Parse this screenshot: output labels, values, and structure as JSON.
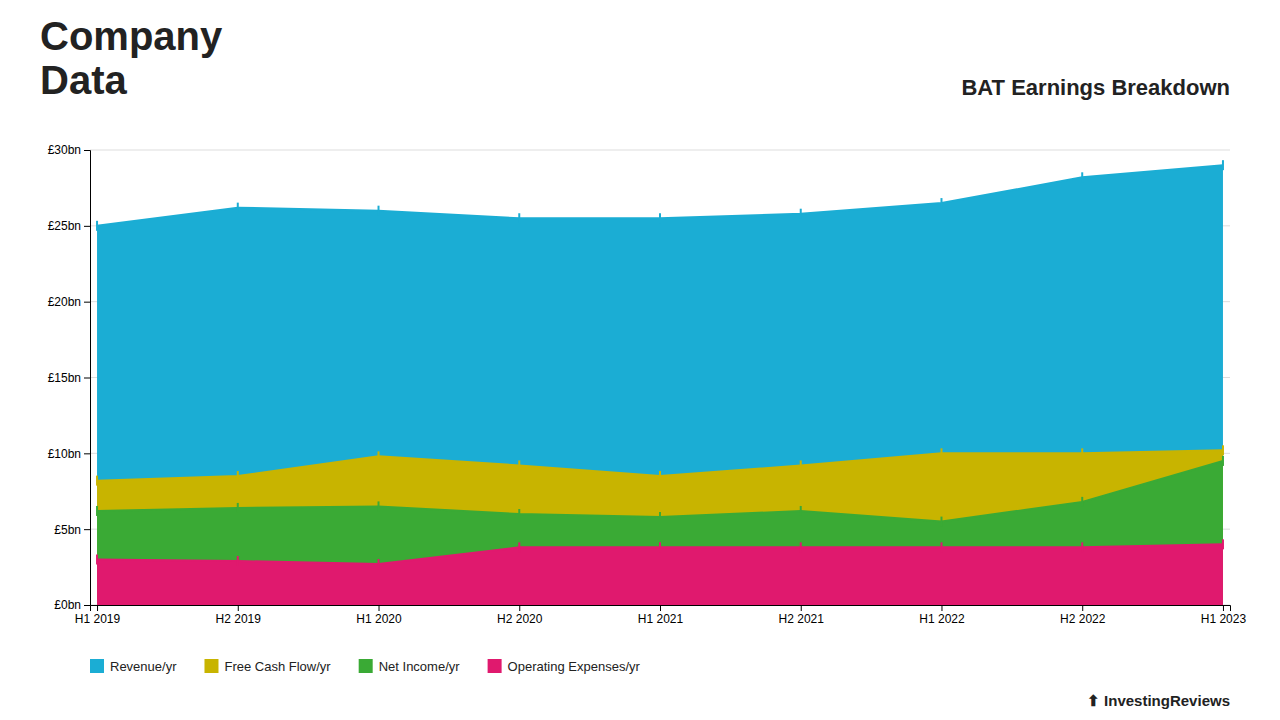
{
  "chart_data": {
    "type": "area",
    "title": "Company\nData",
    "subtitle": "BAT Earnings Breakdown",
    "annotations": [
      "⬆ InvestingReviews"
    ],
    "categories": [
      "H1 2019",
      "H2 2019",
      "H1 2020",
      "H2 2020",
      "H1 2021",
      "H2 2021",
      "H1 2022",
      "H2 2022",
      "H1 2023"
    ],
    "series": [
      {
        "name": "Revenue/yr",
        "color": "#1badd4",
        "values": [
          25.0,
          26.2,
          26.0,
          25.5,
          25.5,
          25.8,
          26.5,
          28.2,
          29.0
        ]
      },
      {
        "name": "Free Cash Flow/yr",
        "color": "#c8b400",
        "values": [
          8.2,
          8.5,
          9.8,
          9.2,
          8.5,
          9.2,
          10.0,
          10.0,
          10.2
        ]
      },
      {
        "name": "Net Income/yr",
        "color": "#3aaa35",
        "values": [
          6.2,
          6.4,
          6.5,
          6.0,
          5.8,
          6.2,
          5.5,
          6.8,
          9.5
        ]
      },
      {
        "name": "Operating Expenses/yr",
        "color": "#e0196e",
        "values": [
          3.0,
          2.9,
          2.7,
          3.8,
          3.8,
          3.8,
          3.8,
          3.8,
          4.0
        ]
      }
    ],
    "ylim": [
      0,
      30
    ],
    "yticks": [
      {
        "value": 0,
        "label": "£0bn"
      },
      {
        "value": 5,
        "label": "£5bn"
      },
      {
        "value": 10,
        "label": "£10bn"
      },
      {
        "value": 15,
        "label": "£15bn"
      },
      {
        "value": 20,
        "label": "£20bn"
      },
      {
        "value": 25,
        "label": "£25bn"
      },
      {
        "value": 30,
        "label": "£30bn"
      }
    ],
    "grid": true,
    "legend": "bottom",
    "marker": "vline"
  }
}
